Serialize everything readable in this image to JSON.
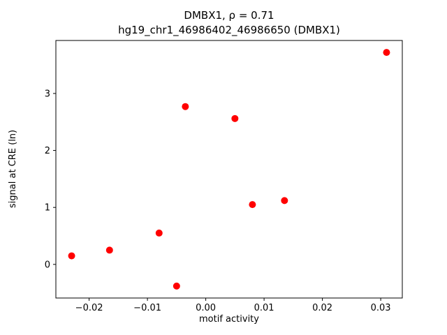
{
  "figure": {
    "background": "#ffffff"
  },
  "chart_data": {
    "type": "scatter",
    "title_line1": "DMBX1, ρ = 0.71",
    "title_line2": "hg19_chr1_46986402_46986650 (DMBX1)",
    "xlabel": "motif activity",
    "ylabel": "signal at CRE (ln)",
    "marker_color": "#ff0000",
    "marker_size_px": 5,
    "xlim": [
      -0.0257,
      0.0337
    ],
    "ylim": [
      -0.59,
      3.93
    ],
    "xticks": [
      -0.02,
      -0.01,
      0.0,
      0.01,
      0.02,
      0.03
    ],
    "xtick_labels": [
      "−0.02",
      "−0.01",
      "0.00",
      "0.01",
      "0.02",
      "0.03"
    ],
    "yticks": [
      0,
      1,
      2,
      3
    ],
    "ytick_labels": [
      "0",
      "1",
      "2",
      "3"
    ],
    "grid": false,
    "legend": "none",
    "points": [
      {
        "x": -0.023,
        "y": 0.15
      },
      {
        "x": -0.0165,
        "y": 0.25
      },
      {
        "x": -0.008,
        "y": 0.55
      },
      {
        "x": -0.005,
        "y": -0.38
      },
      {
        "x": -0.0035,
        "y": 2.77
      },
      {
        "x": 0.005,
        "y": 2.56
      },
      {
        "x": 0.008,
        "y": 1.05
      },
      {
        "x": 0.0135,
        "y": 1.12
      },
      {
        "x": 0.031,
        "y": 3.72
      }
    ]
  }
}
